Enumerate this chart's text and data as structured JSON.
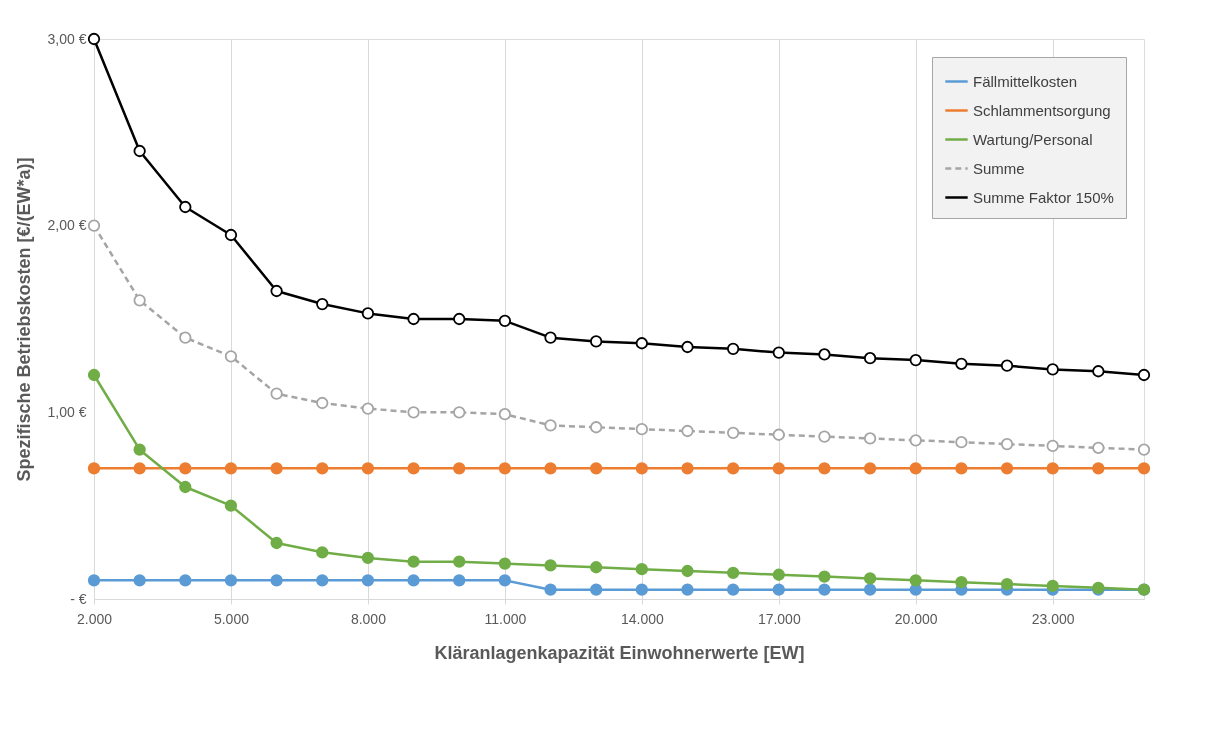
{
  "chart_data": {
    "type": "line",
    "xlabel": "Kläranlagenkapazität Einwohnerwerte [EW]",
    "ylabel": "Spezifische Betriebskosten [€/(EW*a)]",
    "x": [
      2000,
      3000,
      4000,
      5000,
      6000,
      7000,
      8000,
      9000,
      10000,
      11000,
      12000,
      13000,
      14000,
      15000,
      16000,
      17000,
      18000,
      19000,
      20000,
      21000,
      22000,
      23000,
      24000,
      25000
    ],
    "series": [
      {
        "name": "Fällmittelkosten",
        "color": "#5b9bd5",
        "marker": "circle",
        "line_style": "solid",
        "values": [
          0.1,
          0.1,
          0.1,
          0.1,
          0.1,
          0.1,
          0.1,
          0.1,
          0.1,
          0.1,
          0.05,
          0.05,
          0.05,
          0.05,
          0.05,
          0.05,
          0.05,
          0.05,
          0.05,
          0.05,
          0.05,
          0.05,
          0.05,
          0.05
        ]
      },
      {
        "name": "Schlammentsorgung",
        "color": "#ed7d31",
        "marker": "circle",
        "line_style": "solid",
        "values": [
          0.7,
          0.7,
          0.7,
          0.7,
          0.7,
          0.7,
          0.7,
          0.7,
          0.7,
          0.7,
          0.7,
          0.7,
          0.7,
          0.7,
          0.7,
          0.7,
          0.7,
          0.7,
          0.7,
          0.7,
          0.7,
          0.7,
          0.7,
          0.7
        ]
      },
      {
        "name": "Wartung/Personal",
        "color": "#70ad47",
        "marker": "circle",
        "line_style": "solid",
        "values": [
          1.2,
          0.8,
          0.6,
          0.5,
          0.3,
          0.25,
          0.22,
          0.2,
          0.2,
          0.19,
          0.18,
          0.17,
          0.16,
          0.15,
          0.14,
          0.13,
          0.12,
          0.11,
          0.1,
          0.09,
          0.08,
          0.07,
          0.06,
          0.05
        ]
      },
      {
        "name": "Summe",
        "color": "#a5a5a5",
        "marker": "circle",
        "line_style": "dashed",
        "values": [
          2.0,
          1.6,
          1.4,
          1.3,
          1.1,
          1.05,
          1.02,
          1.0,
          1.0,
          0.99,
          0.93,
          0.92,
          0.91,
          0.9,
          0.89,
          0.88,
          0.87,
          0.86,
          0.85,
          0.84,
          0.83,
          0.82,
          0.81,
          0.8
        ]
      },
      {
        "name": "Summe Faktor 150%",
        "color": "#000000",
        "marker": "circle",
        "line_style": "solid",
        "values": [
          3.0,
          2.4,
          2.1,
          1.95,
          1.65,
          1.58,
          1.53,
          1.5,
          1.5,
          1.49,
          1.4,
          1.38,
          1.37,
          1.35,
          1.34,
          1.32,
          1.31,
          1.29,
          1.28,
          1.26,
          1.25,
          1.23,
          1.22,
          1.2
        ]
      }
    ],
    "xlim": [
      2000,
      25000
    ],
    "xticks": [
      {
        "value": 2000,
        "label": "2.000"
      },
      {
        "value": 5000,
        "label": "5.000"
      },
      {
        "value": 8000,
        "label": "8.000"
      },
      {
        "value": 11000,
        "label": "11.000"
      },
      {
        "value": 14000,
        "label": "14.000"
      },
      {
        "value": 17000,
        "label": "17.000"
      },
      {
        "value": 20000,
        "label": "20.000"
      },
      {
        "value": 23000,
        "label": "23.000"
      }
    ],
    "ylim": [
      0,
      3
    ],
    "yticks": [
      {
        "value": 0,
        "label": "-  €"
      },
      {
        "value": 1,
        "label": "1,00 €"
      },
      {
        "value": 2,
        "label": "2,00 €"
      },
      {
        "value": 3,
        "label": "3,00 €"
      }
    ],
    "grid": "x",
    "legend": "top right"
  }
}
